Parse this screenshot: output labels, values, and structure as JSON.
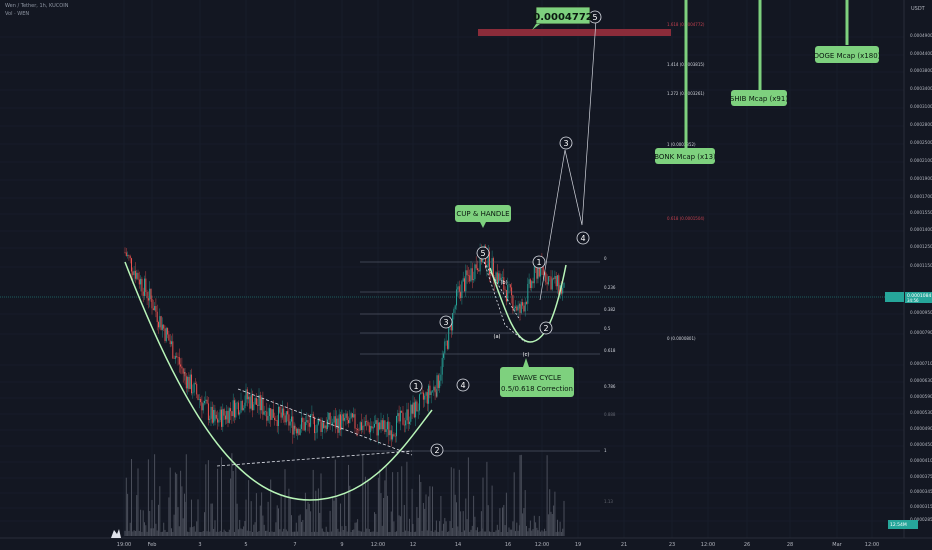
{
  "header": {
    "symbol": "Wen / Tether, 1h, KUCOIN",
    "indicator": "Vol · WEN"
  },
  "price_axis": {
    "currency": "USDT",
    "current_price": "0.0001084",
    "countdown": "34:56",
    "ticks": [
      "0.0004900",
      "0.0004400",
      "0.0003800",
      "0.0003400",
      "0.0003100",
      "0.0002800",
      "0.0002500",
      "0.0002100",
      "0.0001900",
      "0.0001700",
      "0.0001550",
      "0.0001400",
      "0.0001250",
      "0.0001150",
      "0.0000950",
      "0.0000790",
      "0.0000710",
      "0.0000630",
      "0.0000590",
      "0.0000530",
      "0.0000490",
      "0.0000450",
      "0.0000410",
      "0.0000375",
      "0.0000345",
      "0.0000315",
      "0.0000285"
    ]
  },
  "volume_badge": "12.54M",
  "time_axis": {
    "ticks": [
      "19:00",
      "Feb",
      "3",
      "5",
      "7",
      "9",
      "12:00",
      "12",
      "14",
      "16",
      "12:00",
      "19",
      "21",
      "23",
      "12:00",
      "26",
      "28",
      "Mar",
      "12:00"
    ]
  },
  "fib_lower": [
    "0",
    "0.236",
    "0.382",
    "0.5",
    "0.618",
    "0.786",
    "0.888",
    "1",
    "1.13"
  ],
  "fib_upper": [
    "1.618 (0.0004772)",
    "1.414 (0.0003815)",
    "1.272 (0.0003261)",
    "1 (0.0002352)",
    "0.618 (0.0001504)",
    "0 (0.0000801)"
  ],
  "waves": {
    "w1": "1",
    "w2": "2",
    "w3": "3",
    "w4": "4",
    "w5": "5",
    "b": "(b)",
    "a": "(a)",
    "c": "(c)",
    "p1": "1",
    "p2": "2",
    "p3": "3",
    "p4": "4",
    "p5": "5"
  },
  "callouts": {
    "cup_handle": "CUP & HANDLE",
    "ewave_1": "EWAVE CYCLE",
    "ewave_2": "0.5/0.618 Correction",
    "bonk": "BONK Mcap (x13)",
    "shib": "SHIB Mcap (x91)",
    "doge": "DOGE Mcap (x180)",
    "target": "0.0004772"
  },
  "colors": {
    "background": "#131722",
    "up_candle": "#26a69a",
    "down_candle": "#ef5350",
    "callout_green": "#7ed17e",
    "target_bar": "#8b2c3a"
  },
  "chart_data": {
    "type": "candlestick",
    "title": "Wen / Tether, 1h, KUCOIN",
    "series_outline": [
      {
        "t": "19:00",
        "price": 0.000125
      },
      {
        "t": "Feb",
        "price": 9.5e-05
      },
      {
        "t": "3",
        "price": 6.3e-05
      },
      {
        "t": "4",
        "price": 4.9e-05
      },
      {
        "t": "5",
        "price": 5.6e-05
      },
      {
        "t": "7",
        "price": 4.8e-05
      },
      {
        "t": "9",
        "price": 4.9e-05
      },
      {
        "t": "11",
        "price": 4.7e-05
      },
      {
        "t": "12",
        "price": 5.2e-05
      },
      {
        "t": "13",
        "price": 6e-05
      },
      {
        "t": "14",
        "price": 0.0001
      },
      {
        "t": "15",
        "price": 0.000124
      },
      {
        "t": "16",
        "price": 9e-05
      },
      {
        "t": "17",
        "price": 0.000115
      },
      {
        "t": "18",
        "price": 0.0001
      }
    ],
    "current_price": 0.0001084,
    "target_price": 0.0004772,
    "ylim": [
      2.85e-05,
      0.00049
    ],
    "log_scale": true
  }
}
